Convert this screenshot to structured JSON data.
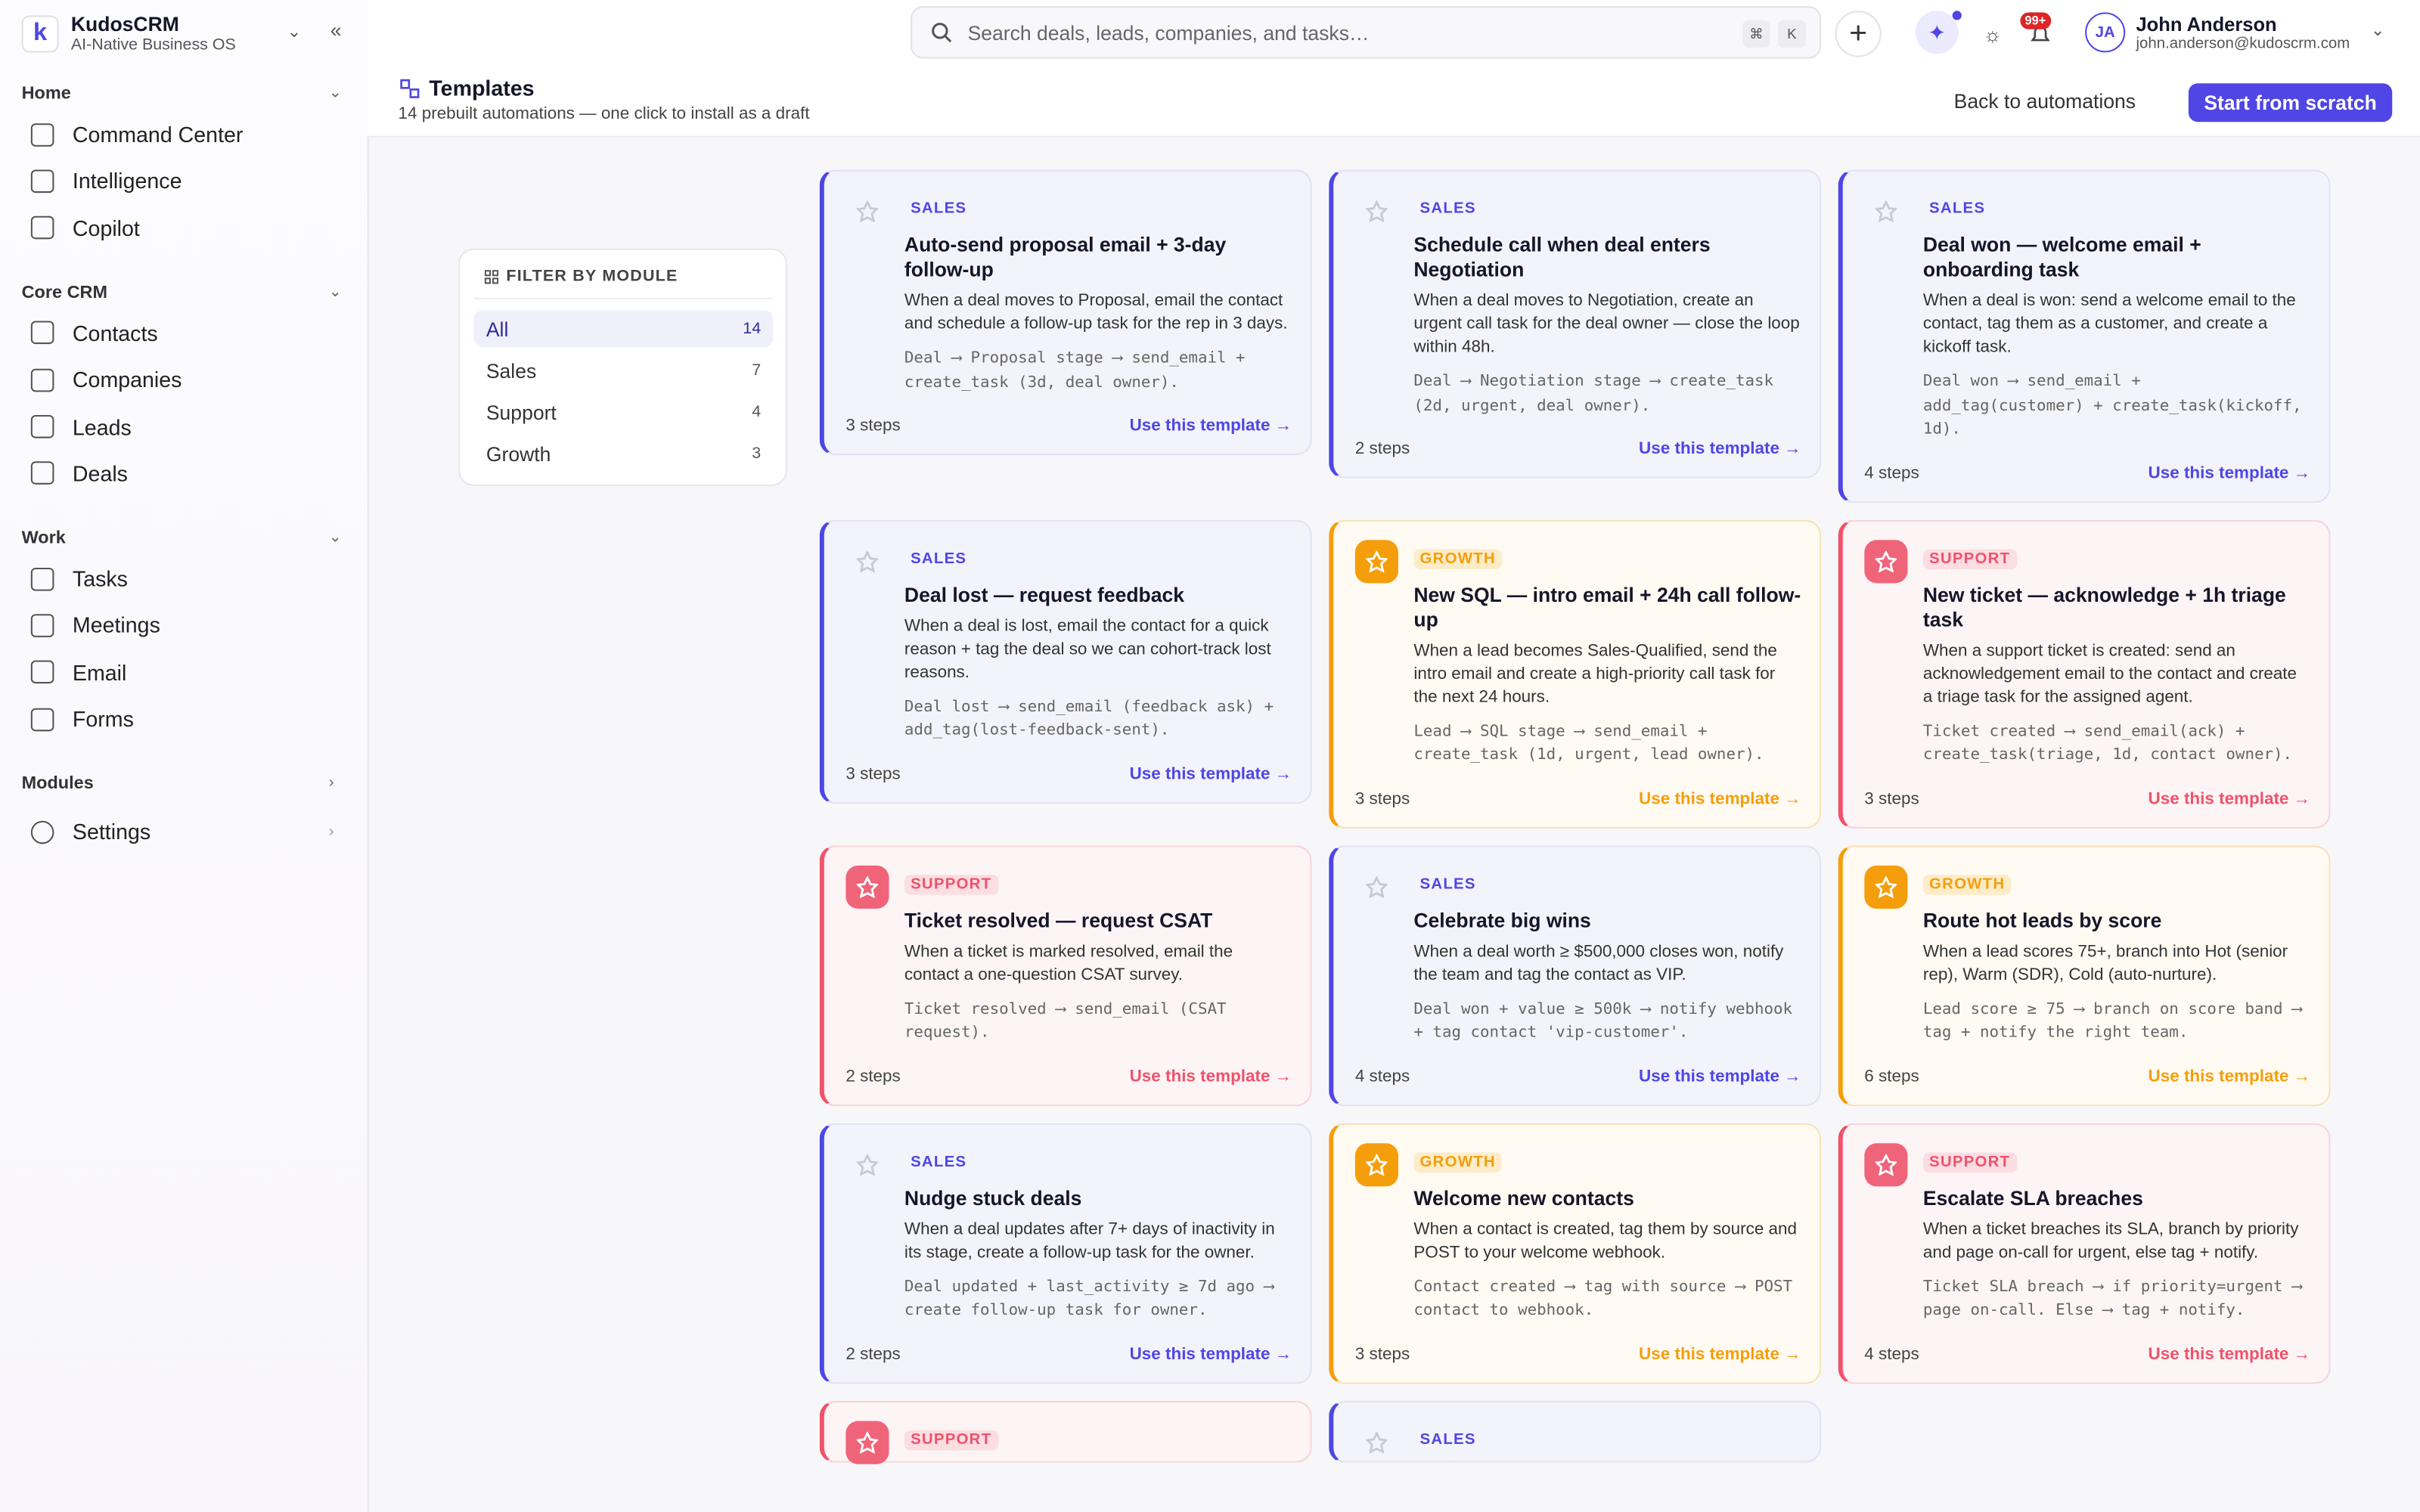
{
  "sidebar": {
    "brand": "KudosCRM",
    "tagline": "AI-Native Business OS",
    "sections": [
      {
        "title": "Home",
        "items": [
          "Command Center",
          "Intelligence",
          "Copilot"
        ]
      },
      {
        "title": "Core CRM",
        "items": [
          "Contacts",
          "Companies",
          "Leads",
          "Deals"
        ]
      },
      {
        "title": "Work",
        "items": [
          "Tasks",
          "Meetings",
          "Email",
          "Forms"
        ]
      },
      {
        "title": "Modules",
        "items": []
      }
    ],
    "settings": "Settings"
  },
  "topbar": {
    "search_placeholder": "Search deals, leads, companies, and tasks…",
    "shortcut": [
      "⌘",
      "K"
    ],
    "notification_badge": "99+",
    "user": {
      "initials": "JA",
      "name": "John Anderson",
      "email": "john.anderson@kudoscrm.com"
    }
  },
  "header": {
    "title": "Templates",
    "subtitle": "14 prebuilt automations — one click to install as a draft",
    "back": "Back to automations",
    "primary": "Start from scratch"
  },
  "filter": {
    "title": "FILTER BY MODULE",
    "options": [
      {
        "label": "All",
        "count": 14
      },
      {
        "label": "Sales",
        "count": 7
      },
      {
        "label": "Support",
        "count": 4
      },
      {
        "label": "Growth",
        "count": 3
      }
    ]
  },
  "templates": [
    {
      "module": "SALES",
      "title": "Auto-send proposal email + 3-day follow-up",
      "description": "When a deal moves to Proposal, email the contact and schedule a follow-up task for the rep in 3 days.",
      "flow": "Deal ⟶ Proposal stage ⟶ send_email + create_task (3d, deal owner).",
      "steps": "3 steps",
      "cta": "Use this template →"
    },
    {
      "module": "SALES",
      "title": "Schedule call when deal enters Negotiation",
      "description": "When a deal moves to Negotiation, create an urgent call task for the deal owner — close the loop within 48h.",
      "flow": "Deal ⟶ Negotiation stage ⟶ create_task (2d, urgent, deal owner).",
      "steps": "2 steps",
      "cta": "Use this template →"
    },
    {
      "module": "SALES",
      "title": "Deal won — welcome email + onboarding task",
      "description": "When a deal is won: send a welcome email to the contact, tag them as a customer, and create a kickoff task.",
      "flow": "Deal won ⟶ send_email + add_tag(customer) + create_task(kickoff, 1d).",
      "steps": "4 steps",
      "cta": "Use this template →"
    },
    {
      "module": "SALES",
      "title": "Deal lost — request feedback",
      "description": "When a deal is lost, email the contact for a quick reason + tag the deal so we can cohort-track lost reasons.",
      "flow": "Deal lost ⟶ send_email (feedback ask) + add_tag(lost-feedback-sent).",
      "steps": "3 steps",
      "cta": "Use this template →"
    },
    {
      "module": "GROWTH",
      "title": "New SQL — intro email + 24h call follow-up",
      "description": "When a lead becomes Sales-Qualified, send the intro email and create a high-priority call task for the next 24 hours.",
      "flow": "Lead ⟶ SQL stage ⟶ send_email + create_task (1d, urgent, lead owner).",
      "steps": "3 steps",
      "cta": "Use this template →"
    },
    {
      "module": "SUPPORT",
      "title": "New ticket — acknowledge + 1h triage task",
      "description": "When a support ticket is created: send an acknowledgement email to the contact and create a triage task for the assigned agent.",
      "flow": "Ticket created ⟶ send_email(ack) + create_task(triage, 1d, contact owner).",
      "steps": "3 steps",
      "cta": "Use this template →"
    },
    {
      "module": "SUPPORT",
      "title": "Ticket resolved — request CSAT",
      "description": "When a ticket is marked resolved, email the contact a one-question CSAT survey.",
      "flow": "Ticket resolved ⟶ send_email (CSAT request).",
      "steps": "2 steps",
      "cta": "Use this template →"
    },
    {
      "module": "SALES",
      "title": "Celebrate big wins",
      "description": "When a deal worth ≥ $500,000 closes won, notify the team and tag the contact as VIP.",
      "flow": "Deal won + value ≥ 500k ⟶ notify webhook + tag contact 'vip-customer'.",
      "steps": "4 steps",
      "cta": "Use this template →"
    },
    {
      "module": "GROWTH",
      "title": "Route hot leads by score",
      "description": "When a lead scores 75+, branch into Hot (senior rep), Warm (SDR), Cold (auto-nurture).",
      "flow": "Lead score ≥ 75 ⟶ branch on score band ⟶ tag + notify the right team.",
      "steps": "6 steps",
      "cta": "Use this template →"
    },
    {
      "module": "SALES",
      "title": "Nudge stuck deals",
      "description": "When a deal updates after 7+ days of inactivity in its stage, create a follow-up task for the owner.",
      "flow": "Deal updated + last_activity ≥ 7d ago ⟶ create follow-up task for owner.",
      "steps": "2 steps",
      "cta": "Use this template →"
    },
    {
      "module": "GROWTH",
      "title": "Welcome new contacts",
      "description": "When a contact is created, tag them by source and POST to your welcome webhook.",
      "flow": "Contact created ⟶ tag with source ⟶ POST contact to webhook.",
      "steps": "3 steps",
      "cta": "Use this template →"
    },
    {
      "module": "SUPPORT",
      "title": "Escalate SLA breaches",
      "description": "When a ticket breaches its SLA, branch by priority and page on-call for urgent, else tag + notify.",
      "flow": "Ticket SLA breach ⟶ if priority=urgent ⟶ page on-call. Else ⟶ tag + notify.",
      "steps": "4 steps",
      "cta": "Use this template →"
    },
    {
      "module": "SUPPORT"
    },
    {
      "module": "SALES"
    }
  ]
}
